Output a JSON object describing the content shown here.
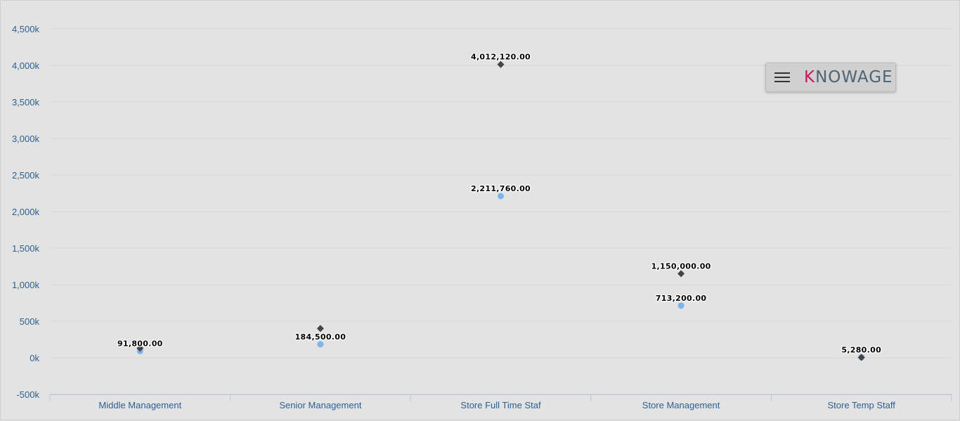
{
  "chart_data": {
    "type": "scatter",
    "categories": [
      "Middle Management",
      "Senior Management",
      "Store Full Time Staf",
      "Store Management",
      "Store Temp Staff"
    ],
    "series": [
      {
        "marker": "circle",
        "color": "#7cb5ec",
        "values": [
          91800,
          184500,
          2211760,
          713200,
          5280
        ],
        "labels": [
          "91,800.00",
          "184,500.00",
          "2,211,760.00",
          "713,200.00",
          "5,280.00"
        ]
      },
      {
        "marker": "diamond",
        "color": "#434348",
        "values": [
          130000,
          400000,
          4012120,
          1150000,
          5280
        ],
        "labels": [
          "",
          "",
          "4,012,120.00",
          "1,150,000.00",
          ""
        ]
      }
    ],
    "ylim": [
      -500000,
      4500000
    ],
    "yticks": [
      -500000,
      0,
      500000,
      1000000,
      1500000,
      2000000,
      2500000,
      3000000,
      3500000,
      4000000,
      4500000
    ],
    "ytick_labels": [
      "-500k",
      "0k",
      "500k",
      "1,000k",
      "1,500k",
      "2,000k",
      "2,500k",
      "3,000k",
      "3,500k",
      "4,000k",
      "4,500k"
    ],
    "grid": true,
    "legend": "none"
  },
  "toolbar": {
    "logo_prefix": "K",
    "logo_rest": "NOWAGE"
  },
  "colors": {
    "background": "#e3e3e3",
    "grid": "#d4d4d4",
    "axis_text": "#2f5f8f",
    "brand_accent": "#c2185b"
  }
}
